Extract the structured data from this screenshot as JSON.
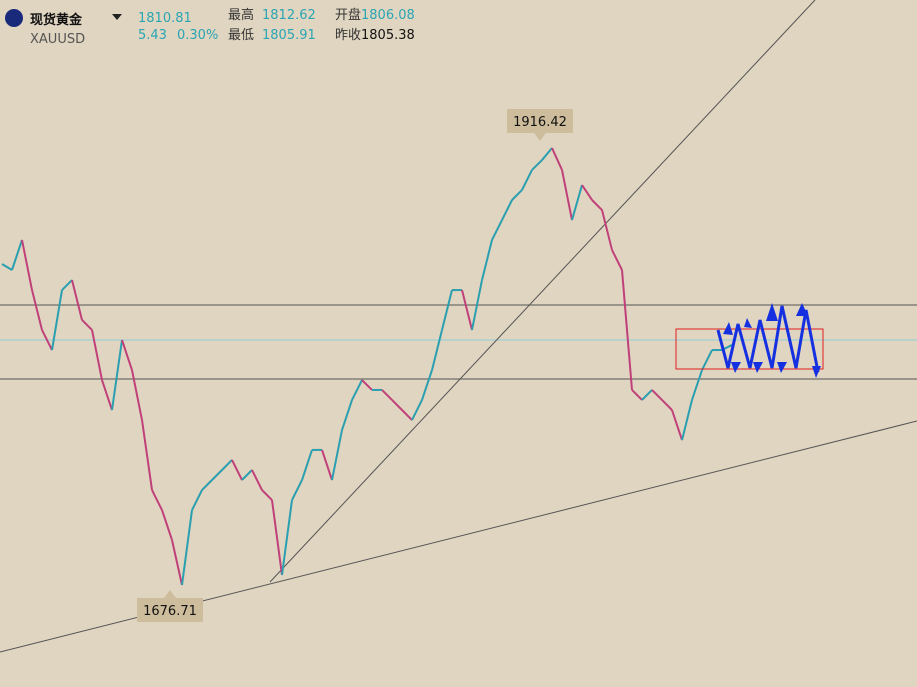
{
  "header": {
    "name": "现货黄金",
    "symbol": "XAUUSD",
    "price": 1810.81,
    "change": 5.43,
    "change_pct": "0.30%",
    "stats": [
      {
        "label": "最高",
        "value": 1812.62
      },
      {
        "label": "开盘",
        "value": 1806.08
      },
      {
        "label": "最低",
        "value": 1805.91
      },
      {
        "label": "昨收",
        "value": 1805.38
      }
    ]
  },
  "price_chart": {
    "high_label": 1916.42,
    "low_label": 1676.71,
    "closes": [
      1849.5,
      1866.0,
      1838.5,
      1816.6,
      1805.6,
      1838.5,
      1844.0,
      1822.1,
      1816.6,
      1789.1,
      1772.7,
      1811.1,
      1794.6,
      1767.2,
      1728.8,
      1717.8,
      1701.4,
      1676.71,
      1717.8,
      1728.8,
      1734.3,
      1739.8,
      1745.3,
      1734.3,
      1739.8,
      1728.8,
      1723.3,
      1682.2,
      1723.3,
      1734.3,
      1750.8,
      1750.8,
      1734.3,
      1761.7,
      1778.2,
      1789.1,
      1783.7,
      1783.7,
      1778.2,
      1772.7,
      1767.2,
      1778.2,
      1794.6,
      1816.6,
      1838.5,
      1838.5,
      1816.6,
      1844.0,
      1866.0,
      1876.9,
      1887.9,
      1893.4,
      1904.4,
      1909.8,
      1916.42,
      1904.4,
      1876.9,
      1896.1,
      1887.9,
      1882.4,
      1860.5,
      1849.5,
      1783.7,
      1778.2,
      1783.7,
      1778.2,
      1772.7,
      1756.2,
      1778.2,
      1794.6,
      1805.6,
      1805.6,
      1808.4
    ]
  }
}
